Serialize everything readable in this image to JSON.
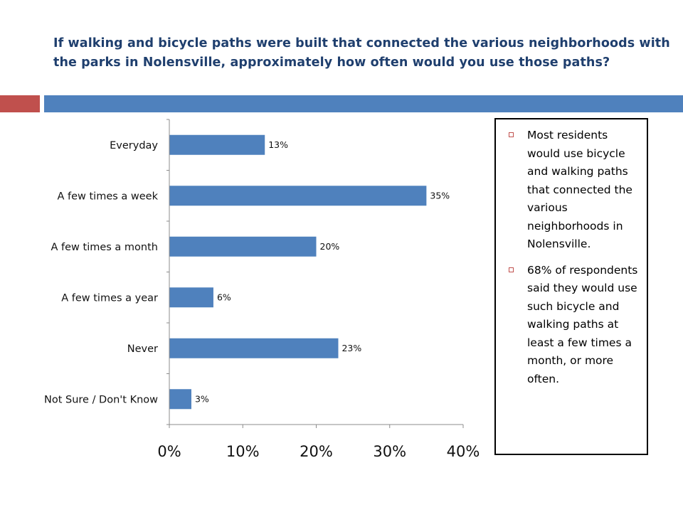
{
  "slide": {
    "title": "If walking and bicycle paths were built that connected the various neighborhoods with the parks in Nolensville, approximately how often would you use those paths?",
    "colors": {
      "band_red": "#c0504d",
      "band_blue": "#4f81bd",
      "title": "#1f3f6e"
    }
  },
  "chart_data": {
    "type": "bar",
    "orientation": "horizontal",
    "categories": [
      "Everyday",
      "A few times a week",
      "A few times a month",
      "A few times a year",
      "Never",
      "Not Sure / Don't Know"
    ],
    "values": [
      13,
      35,
      20,
      6,
      23,
      3
    ],
    "data_labels": [
      "13%",
      "35%",
      "20%",
      "6%",
      "23%",
      "3%"
    ],
    "x_ticks": [
      "0%",
      "10%",
      "20%",
      "30%",
      "40%"
    ],
    "xlim": [
      0,
      40
    ],
    "grid": false,
    "bar_color": "#4f81bd"
  },
  "callout": {
    "bullets": [
      "Most residents would use bicycle and walking paths that connected the various neighborhoods in Nolensville.",
      "68% of respondents said they would use such bicycle and walking paths at least a few times a month, or more often."
    ],
    "bullet_icon": "hollow-square-icon"
  }
}
